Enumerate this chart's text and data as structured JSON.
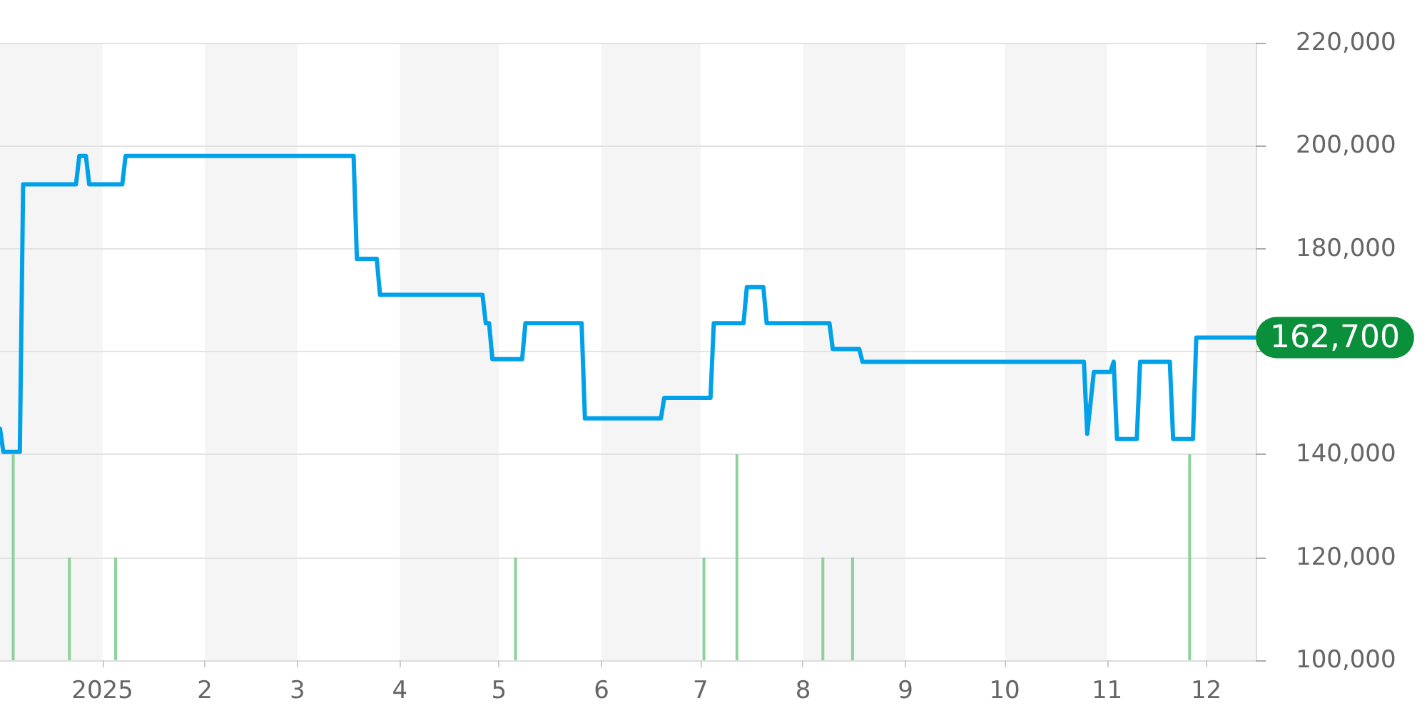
{
  "chart_data": {
    "type": "line",
    "series": [
      {
        "color": "#00a1e9",
        "x": [
          "2024-12-01",
          "2024-12-02",
          "2024-12-07",
          "2024-12-08",
          "2024-12-24",
          "2024-12-25",
          "2024-12-27",
          "2024-12-28",
          "2025-01-07",
          "2025-01-08",
          "2025-03-18",
          "2025-03-19",
          "2025-03-25",
          "2025-03-26",
          "2025-04-26",
          "2025-04-27",
          "2025-04-28",
          "2025-04-29",
          "2025-05-08",
          "2025-05-09",
          "2025-05-26",
          "2025-05-27",
          "2025-06-19",
          "2025-06-20",
          "2025-07-04",
          "2025-07-05",
          "2025-07-14",
          "2025-07-15",
          "2025-07-20",
          "2025-07-21",
          "2025-08-09",
          "2025-08-10",
          "2025-08-18",
          "2025-08-19",
          "2025-10-25",
          "2025-10-26",
          "2025-10-28",
          "2025-11-02",
          "2025-11-03",
          "2025-11-04",
          "2025-11-10",
          "2025-11-11",
          "2025-11-20",
          "2025-11-21",
          "2025-11-27",
          "2025-11-28",
          "2025-12-16"
        ],
        "values": [
          145000,
          140500,
          140500,
          192500,
          192500,
          198000,
          198000,
          192500,
          192500,
          198000,
          198000,
          178000,
          178000,
          171000,
          171000,
          165500,
          165500,
          158500,
          158500,
          165500,
          165500,
          147000,
          147000,
          151000,
          151000,
          165500,
          165500,
          172500,
          172500,
          165500,
          165500,
          160500,
          160500,
          158000,
          158000,
          144000,
          156000,
          156000,
          158000,
          143000,
          143000,
          158000,
          158000,
          143000,
          143000,
          162700,
          162700
        ]
      },
      {
        "type": "bar",
        "color": "#8cd29a",
        "x": [
          "2024-12-05",
          "2024-12-22",
          "2025-01-05",
          "2025-05-06",
          "2025-07-02",
          "2025-07-12",
          "2025-08-07",
          "2025-08-16",
          "2025-11-26"
        ],
        "values": [
          140000,
          120000,
          120000,
          120000,
          120000,
          140000,
          120000,
          120000,
          140000
        ]
      }
    ],
    "xlim": [
      "2024-12-01",
      "2025-12-16"
    ],
    "xticks": [
      {
        "value": "2025-01-01",
        "label": "2025"
      },
      {
        "value": "2025-02-01",
        "label": "2"
      },
      {
        "value": "2025-03-01",
        "label": "3"
      },
      {
        "value": "2025-04-01",
        "label": "4"
      },
      {
        "value": "2025-05-01",
        "label": "5"
      },
      {
        "value": "2025-06-01",
        "label": "6"
      },
      {
        "value": "2025-07-01",
        "label": "7"
      },
      {
        "value": "2025-08-01",
        "label": "8"
      },
      {
        "value": "2025-09-01",
        "label": "9"
      },
      {
        "value": "2025-10-01",
        "label": "10"
      },
      {
        "value": "2025-11-01",
        "label": "11"
      },
      {
        "value": "2025-12-01",
        "label": "12"
      }
    ],
    "ylim": [
      100000,
      220000
    ],
    "yticks": [
      {
        "value": 100000,
        "label": "100,000"
      },
      {
        "value": 120000,
        "label": "120,000"
      },
      {
        "value": 140000,
        "label": "140,000"
      },
      {
        "value": 160000,
        "label": null
      },
      {
        "value": 180000,
        "label": "180,000"
      },
      {
        "value": 200000,
        "label": "200,000"
      },
      {
        "value": 220000,
        "label": "220,000"
      }
    ],
    "grid": "y",
    "bands": [
      {
        "axis": "x",
        "from": "2024-12-01",
        "to": "2025-01-01",
        "color": "#f5f5f5"
      },
      {
        "axis": "x",
        "from": "2025-02-01",
        "to": "2025-03-01",
        "color": "#f5f5f5"
      },
      {
        "axis": "x",
        "from": "2025-04-01",
        "to": "2025-05-01",
        "color": "#f5f5f5"
      },
      {
        "axis": "x",
        "from": "2025-06-01",
        "to": "2025-07-01",
        "color": "#f5f5f5"
      },
      {
        "axis": "x",
        "from": "2025-08-01",
        "to": "2025-09-01",
        "color": "#f5f5f5"
      },
      {
        "axis": "x",
        "from": "2025-10-01",
        "to": "2025-11-01",
        "color": "#f5f5f5"
      },
      {
        "axis": "x",
        "from": "2025-12-01",
        "to": "2025-12-16",
        "color": "#f5f5f5"
      }
    ],
    "annotations": [
      {
        "text": "162,700",
        "x": "2025-12-16",
        "y": 162700
      }
    ]
  }
}
